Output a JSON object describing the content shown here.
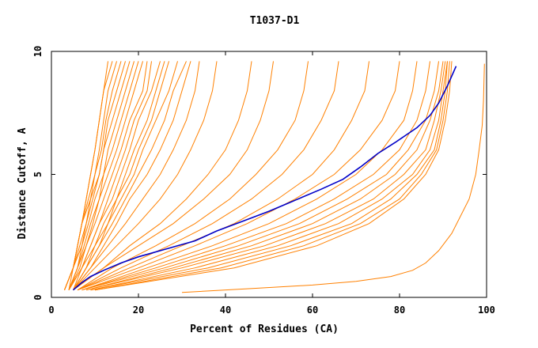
{
  "chart_data": {
    "type": "line",
    "title": "T1037-D1",
    "xlabel": "Percent of Residues (CA)",
    "ylabel": "Distance Cutoff, A",
    "xlim": [
      0,
      100
    ],
    "ylim": [
      0,
      10
    ],
    "xticks": [
      0,
      20,
      40,
      60,
      80,
      100
    ],
    "yticks": [
      0,
      5,
      10
    ],
    "grid": false,
    "legend": "none",
    "colors": {
      "group": "#ff8000",
      "highlight": "#0000c8",
      "axis": "#000000"
    },
    "highlight_series": {
      "x": [
        5,
        7,
        9,
        12,
        16,
        20,
        26,
        33,
        38,
        44,
        50,
        56,
        62,
        67,
        71,
        75,
        79,
        84,
        87,
        89,
        91,
        93
      ],
      "y": [
        0.3,
        0.6,
        0.85,
        1.1,
        1.4,
        1.65,
        1.95,
        2.3,
        2.7,
        3.1,
        3.5,
        3.95,
        4.4,
        4.8,
        5.3,
        5.85,
        6.3,
        6.9,
        7.4,
        7.9,
        8.6,
        9.4
      ]
    },
    "group_curve_x": [
      [
        3,
        5,
        6,
        7,
        8,
        9,
        10,
        11,
        12,
        13
      ],
      [
        3,
        5,
        6,
        7,
        8,
        9,
        10,
        11,
        12,
        14
      ],
      [
        3,
        5,
        6,
        7,
        8.5,
        10,
        11,
        12,
        13,
        15
      ],
      [
        3,
        5,
        6,
        7,
        9,
        10,
        11.5,
        12.5,
        14,
        16
      ],
      [
        3,
        5,
        6.5,
        8,
        9,
        11,
        12,
        13,
        15,
        17
      ],
      [
        4,
        5,
        7,
        8,
        9.5,
        11,
        12,
        14,
        16,
        18
      ],
      [
        4,
        6,
        7,
        8.5,
        10,
        12,
        13,
        15,
        17,
        19
      ],
      [
        4,
        6,
        7.5,
        9,
        11,
        12,
        14,
        16,
        18,
        20
      ],
      [
        4,
        6,
        8,
        9.5,
        11,
        13,
        15,
        17,
        19,
        21
      ],
      [
        4,
        6.5,
        8,
        10,
        12,
        14,
        16,
        18,
        21,
        22
      ],
      [
        4,
        7,
        9,
        11,
        13,
        15,
        17,
        19,
        22,
        23
      ],
      [
        4,
        7,
        9,
        11,
        14,
        16,
        18,
        20,
        23,
        25
      ],
      [
        5,
        7,
        10,
        12,
        15,
        17,
        19,
        22,
        24,
        26
      ],
      [
        5,
        8,
        10,
        13,
        15,
        18,
        20,
        23,
        25,
        27
      ],
      [
        5,
        8,
        11,
        13,
        16,
        19,
        21,
        24,
        27,
        29
      ],
      [
        5,
        8,
        11,
        14,
        17,
        20,
        23,
        26,
        28,
        31
      ],
      [
        5,
        9,
        12,
        15,
        18,
        22,
        25,
        28,
        30,
        32
      ],
      [
        5,
        9,
        13,
        17,
        21,
        25,
        28,
        31,
        33,
        34
      ],
      [
        5,
        10,
        15,
        20,
        25,
        29,
        32,
        35,
        37,
        38
      ],
      [
        5,
        12,
        18,
        25,
        31,
        36,
        40,
        43,
        45,
        46
      ],
      [
        5,
        12,
        20,
        28,
        35,
        41,
        45,
        48,
        50,
        51
      ],
      [
        6,
        14,
        24,
        33,
        41,
        47,
        52,
        56,
        58,
        59
      ],
      [
        6,
        16,
        27,
        37,
        46,
        53,
        58,
        62,
        65,
        66
      ],
      [
        6,
        18,
        30,
        42,
        52,
        60,
        65,
        69,
        72,
        73
      ],
      [
        6,
        20,
        33,
        45,
        56,
        65,
        71,
        76,
        79,
        80
      ],
      [
        7,
        22,
        37,
        50,
        61,
        70,
        76,
        81,
        83,
        84
      ],
      [
        7,
        24,
        40,
        54,
        65,
        74,
        80,
        84,
        86,
        87
      ],
      [
        7,
        26,
        43,
        57,
        68,
        77,
        82,
        86,
        88,
        89
      ],
      [
        8,
        28,
        46,
        60,
        71,
        79,
        84,
        87,
        89,
        90
      ],
      [
        8,
        30,
        49,
        63,
        74,
        81,
        86,
        88,
        89.5,
        90.5
      ],
      [
        9,
        33,
        52,
        66,
        76,
        83,
        87,
        89,
        90,
        91
      ],
      [
        9,
        36,
        55,
        69,
        78,
        84,
        88,
        89.5,
        90.5,
        91
      ],
      [
        10,
        39,
        58,
        71,
        80,
        85,
        88.5,
        90,
        91,
        91.5
      ],
      [
        10,
        42,
        61,
        73,
        81,
        86,
        89,
        90.5,
        91.5,
        92
      ]
    ],
    "group_curve_y": [
      0.3,
      1.2,
      2.1,
      3.0,
      4.0,
      5.0,
      6.0,
      7.2,
      8.4,
      9.6
    ],
    "outlier_series": [
      {
        "x": [
          30,
          45,
          60,
          70,
          78,
          83,
          86,
          89,
          92,
          94,
          96,
          97.5,
          98.3,
          99,
          99.3,
          99.5
        ],
        "y": [
          0.2,
          0.35,
          0.5,
          0.65,
          0.85,
          1.1,
          1.4,
          1.9,
          2.6,
          3.3,
          4.0,
          5.0,
          6.0,
          7.0,
          8.0,
          9.5
        ]
      }
    ]
  }
}
